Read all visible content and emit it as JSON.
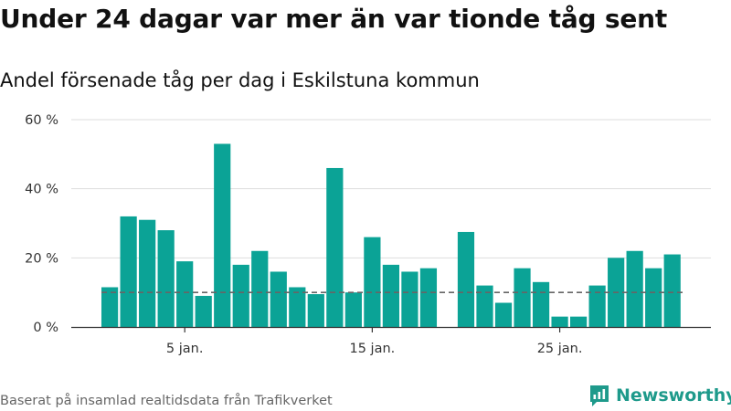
{
  "title": "Under 24 dagar var mer än var tionde tåg sent",
  "subtitle": "Andel försenade tåg per dag i Eskilstuna kommun",
  "footer": "Baserat på insamlad realtidsdata från Trafikverket",
  "brand": "Newsworthy",
  "colors": {
    "bar": "#0ba396",
    "reference_line": "#666666",
    "grid": "#dddddd",
    "brand": "#1e9a8b"
  },
  "chart_data": {
    "type": "bar",
    "x": [
      1,
      2,
      3,
      4,
      5,
      6,
      7,
      8,
      9,
      10,
      11,
      12,
      13,
      14,
      15,
      16,
      17,
      18,
      19,
      20,
      21,
      22,
      23,
      24,
      25,
      26,
      27,
      28,
      29,
      30,
      31
    ],
    "x_tick_values": [
      5,
      15,
      25
    ],
    "x_tick_labels": [
      "5 jan.",
      "15 jan.",
      "25 jan."
    ],
    "values": [
      11.5,
      32,
      31,
      28,
      19,
      9,
      53,
      18,
      22,
      16,
      11.5,
      9.5,
      46,
      10,
      26,
      18,
      16,
      17,
      null,
      27.5,
      12,
      7,
      17,
      13,
      3,
      3,
      12,
      20,
      22,
      17,
      21
    ],
    "reference_value": 10,
    "reference_style": "dashed",
    "ylim": [
      0,
      60
    ],
    "y_ticks": [
      0,
      20,
      40,
      60
    ],
    "y_tick_labels": [
      "0 %",
      "20 %",
      "40 %",
      "60 %"
    ],
    "grid": true
  }
}
